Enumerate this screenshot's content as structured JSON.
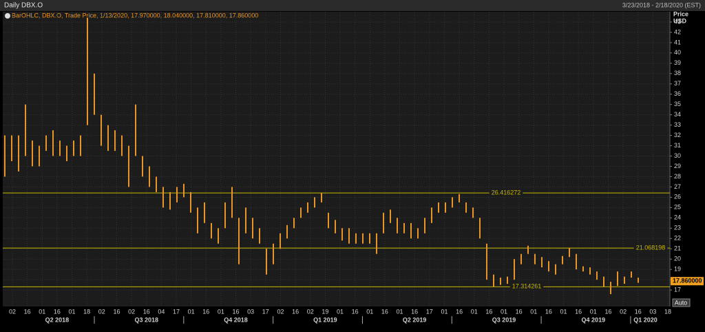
{
  "chart_data": {
    "type": "ohlc",
    "title": "Daily DBX.O",
    "subtitle": "3/23/2018 - 2/18/2020 (EST)",
    "legend": "BarOHLC, DBX.O, Trade Price,  1/13/2020, 17.970000, 18.040000, 17.810000, 17.860000",
    "y_label": "Price",
    "y_unit": "USD",
    "button": "Auto",
    "color": "#e8962a",
    "line_color": "#c9b800",
    "grid": true,
    "ylim": [
      15.4,
      44.0
    ],
    "yticks": [
      17,
      18,
      19,
      20,
      21,
      22,
      23,
      24,
      25,
      26,
      27,
      28,
      29,
      30,
      31,
      32,
      33,
      34,
      35,
      36,
      37,
      38,
      39,
      40,
      41,
      42,
      43
    ],
    "low": [
      28,
      29.5,
      28.5,
      30,
      29,
      29,
      30.5,
      30,
      30,
      29.5,
      30,
      30,
      33,
      34,
      31,
      30.5,
      30.5,
      30,
      27,
      30,
      28,
      27,
      26.5,
      25,
      24.8,
      25.5,
      26,
      24.5,
      22.5,
      23.5,
      22,
      21.5,
      23,
      24,
      19.5,
      22.5,
      22,
      21.5,
      18.5,
      19.5,
      21,
      22,
      23,
      24,
      24.5,
      25,
      25.5,
      23,
      22.5,
      21.8,
      21.5,
      21.5,
      21.5,
      21.5,
      20.5,
      22.5,
      23.5,
      22.5,
      22.5,
      22,
      22,
      22.5,
      23.5,
      24.5,
      24.5,
      25,
      25.5,
      24.5,
      24,
      22,
      18,
      17.3,
      17.5,
      17.6,
      18,
      19.5,
      20.5,
      19.5,
      19.2,
      18.8,
      18.5,
      19.5,
      20.2,
      19,
      18.8,
      18.5,
      18,
      17.3,
      16.6,
      17.4,
      17.6,
      18.2,
      17.7
    ],
    "high": [
      32,
      32,
      32,
      35,
      31.5,
      31,
      32,
      32.5,
      31.5,
      31,
      31.5,
      32,
      43.4,
      38,
      34,
      33,
      32.5,
      32,
      31,
      35,
      30,
      29,
      28,
      27,
      26.5,
      27,
      27.3,
      26.5,
      25,
      25.5,
      23.5,
      23,
      25.5,
      27,
      24,
      25,
      24,
      23,
      21,
      21.5,
      22.5,
      23.3,
      24,
      25,
      25.5,
      26,
      26.4,
      24.5,
      23.8,
      23,
      23,
      22.5,
      22.5,
      22.5,
      22.5,
      24.5,
      24.8,
      24,
      23.5,
      23.5,
      23,
      24,
      25,
      25.5,
      25.5,
      26,
      26.3,
      25.5,
      25,
      24,
      21.5,
      18.5,
      18.2,
      18.3,
      20,
      20.5,
      21.3,
      20.5,
      20.2,
      19.8,
      19.5,
      20.3,
      21.1,
      20.5,
      19.3,
      19.2,
      18.8,
      18.3,
      17.8,
      18.8,
      18.3,
      18.8,
      18.2
    ],
    "hlines": [
      26.416272,
      21.068198,
      17.314261
    ],
    "last_price": {
      "value": 17.86,
      "label": "17.860000"
    },
    "x_labels": [
      "02",
      "16",
      "01",
      "16",
      "01",
      "18",
      "02",
      "16",
      "02",
      "16",
      "04",
      "17",
      "01",
      "16",
      "01",
      "16",
      "03",
      "17",
      "02",
      "16",
      "02",
      "19",
      "01",
      "16",
      "01",
      "16",
      "01",
      "16",
      "17",
      "01",
      "16",
      "01",
      "16",
      "01",
      "16",
      "01",
      "16",
      "01",
      "16",
      "01",
      "16",
      "02",
      "16",
      "03",
      "18"
    ],
    "quarters": [
      "Q2 2018",
      "Q3 2018",
      "Q4 2018",
      "Q1 2019",
      "Q2 2019",
      "Q3 2019",
      "Q4 2019",
      "Q1 2020"
    ]
  }
}
